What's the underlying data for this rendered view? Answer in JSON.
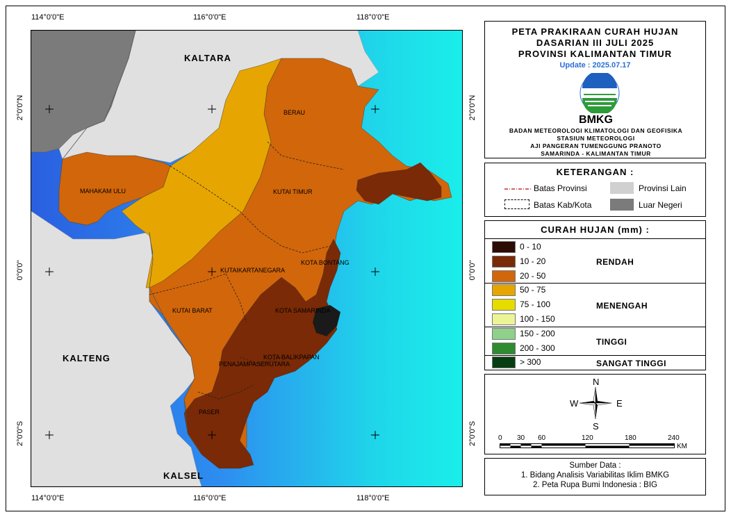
{
  "header": {
    "title_line1": "PETA PRAKIRAAN CURAH HUJAN",
    "title_line2": "DASARIAN III JULI 2025",
    "title_line3": "PROVINSI KALIMANTAN TIMUR",
    "update": "Update : 2025.07.17",
    "logo_text": "BMKG",
    "agency_line1": "BADAN METEOROLOGI KLIMATOLOGI DAN GEOFISIKA",
    "agency_line2": "STASIUN METEOROLOGI",
    "agency_line3": "AJI PANGERAN TUMENGGUNG PRANOTO",
    "agency_line4": "SAMARINDA - KALIMANTAN TIMUR"
  },
  "keterangan": {
    "title": "KETERANGAN :",
    "batas_provinsi": "Batas Provinsi",
    "batas_kab": "Batas Kab/Kota",
    "provinsi_lain": "Provinsi Lain",
    "luar_negeri": "Luar Negeri"
  },
  "curah_hujan": {
    "title": "CURAH HUJAN (mm) :",
    "classes": [
      {
        "label": "0 - 10",
        "color": "#2b0d04"
      },
      {
        "label": "10 - 20",
        "color": "#7a2a06"
      },
      {
        "label": "20 - 50",
        "color": "#d2660a"
      },
      {
        "label": "50 - 75",
        "color": "#e6a500"
      },
      {
        "label": "75 - 100",
        "color": "#e6dc00"
      },
      {
        "label": "100 - 150",
        "color": "#ecf596"
      },
      {
        "label": "150 - 200",
        "color": "#8fd18a"
      },
      {
        "label": "200 - 300",
        "color": "#2e8b2e"
      },
      {
        "label": "> 300",
        "color": "#073d13"
      }
    ],
    "categories": {
      "rendah": "RENDAH",
      "menengah": "MENENGAH",
      "tinggi": "TINGGI",
      "sangat_tinggi": "SANGAT TINGGI"
    }
  },
  "compass": {
    "n": "N",
    "s": "S",
    "e": "E",
    "w": "W"
  },
  "scalebar": {
    "ticks": [
      "0",
      "30",
      "60",
      "120",
      "180",
      "240"
    ],
    "unit": "KM"
  },
  "sumber": {
    "title": "Sumber Data :",
    "line1": "1. Bidang Analisis Variabilitas Iklim BMKG",
    "line2": "2. Peta Rupa Bumi Indonesia : BIG"
  },
  "map": {
    "lon_labels": [
      "114°0'0\"E",
      "116°0'0\"E",
      "118°0'0\"E"
    ],
    "lat_labels": [
      "2°0'0\"N",
      "0°0'0\"",
      "2°0'0\"S"
    ],
    "regions": {
      "kaltara": "KALTARA",
      "kalteng": "KALTENG",
      "kalsel": "KALSEL",
      "berau": "BERAU",
      "mahakam_ulu": "MAHAKAM ULU",
      "kutai_timur": "KUTAI TIMUR",
      "kutai_kartanegara": "KUTAIKARTANEGARA",
      "kota_bontang": "KOTA BONTANG",
      "kutai_barat": "KUTAI BARAT",
      "kota_samarinda": "KOTA SAMARINDA",
      "kota_balikpapan": "KOTA BALIKPAPAN",
      "penajam": "PENAJAMPASERUTARA",
      "paser": "PASER"
    },
    "colors": {
      "luar_negeri": "#7b7b7b",
      "provinsi_lain": "#e0e0e0",
      "sea_deep": "#2a6de8",
      "sea_shallow": "#19e8e8"
    }
  }
}
